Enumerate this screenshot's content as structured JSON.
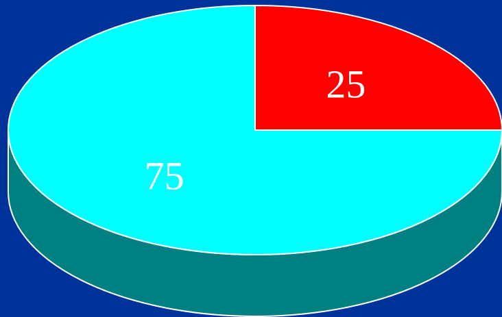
{
  "background_color": "#003399",
  "chart_data": {
    "type": "pie",
    "style": "3d",
    "slices": [
      {
        "label": "25",
        "value": 25,
        "color": "#ff0000",
        "side_color": "#aa0000"
      },
      {
        "label": "75",
        "value": 75,
        "color": "#00ffff",
        "side_color": "#008080"
      }
    ],
    "outline_color": "#ffffff"
  }
}
